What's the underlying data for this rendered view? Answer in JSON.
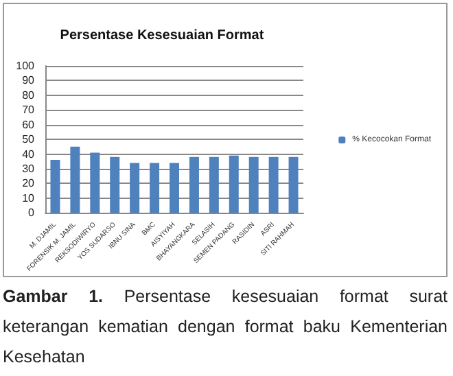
{
  "chart_data": {
    "type": "bar",
    "title": "Persentase Kesesuaian Format",
    "categories": [
      "M. DJAMIL",
      "FORENSIK M. JAMIL",
      "REKSODIWIRYO",
      "YOS SUDARSO",
      "IBNU SINA",
      "BMC",
      "AISYIYAH",
      "BHAYANGKARA",
      "SELASIH",
      "SEMEN PADANG",
      "RASIDIN",
      "ASRI",
      "SITI RAHMAH"
    ],
    "series": [
      {
        "name": "% Kecocokan Format",
        "color": "#4f81bd",
        "values": [
          36,
          45,
          41,
          38,
          34,
          34,
          34,
          38,
          38,
          39,
          38,
          38,
          38
        ]
      }
    ],
    "ylim": [
      0,
      100
    ],
    "yticks": [
      0,
      10,
      20,
      30,
      40,
      50,
      60,
      70,
      80,
      90,
      100
    ],
    "grid": "y",
    "legend": "right",
    "annotations": [
      "Gambar 1.",
      "Persentase kesesuaian format surat keterangan kematian dengan format baku Kementerian Kesehatan"
    ]
  }
}
